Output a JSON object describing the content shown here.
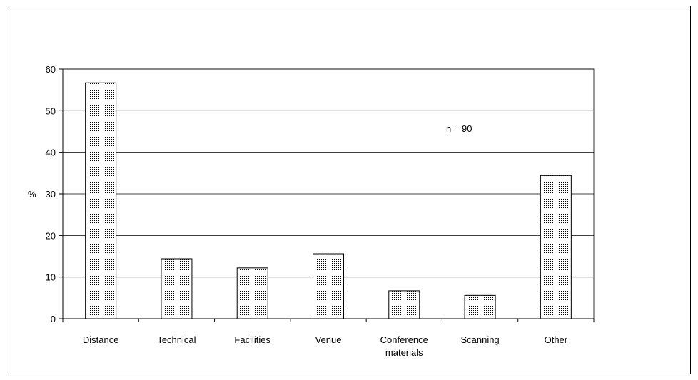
{
  "chart_data": {
    "type": "bar",
    "categories": [
      "Distance",
      "Technical",
      "Facilities",
      "Venue",
      "Conference materials",
      "Scanning",
      "Other"
    ],
    "category_lines": [
      [
        "Distance"
      ],
      [
        "Technical"
      ],
      [
        "Facilities"
      ],
      [
        "Venue"
      ],
      [
        "Conference",
        "materials"
      ],
      [
        "Scanning"
      ],
      [
        "Other"
      ]
    ],
    "values": [
      56.7,
      14.4,
      12.2,
      15.6,
      6.7,
      5.6,
      34.4
    ],
    "ylabel": "%",
    "ylim": [
      0,
      60
    ],
    "yticks": [
      "0",
      "10",
      "20",
      "30",
      "40",
      "50",
      "60"
    ],
    "annotation": "n = 90",
    "grid": true,
    "legend": "none",
    "colors": {
      "bar_fill_dots": "#000000",
      "bar_background": "#ffffff",
      "gridline": "#000000"
    }
  }
}
